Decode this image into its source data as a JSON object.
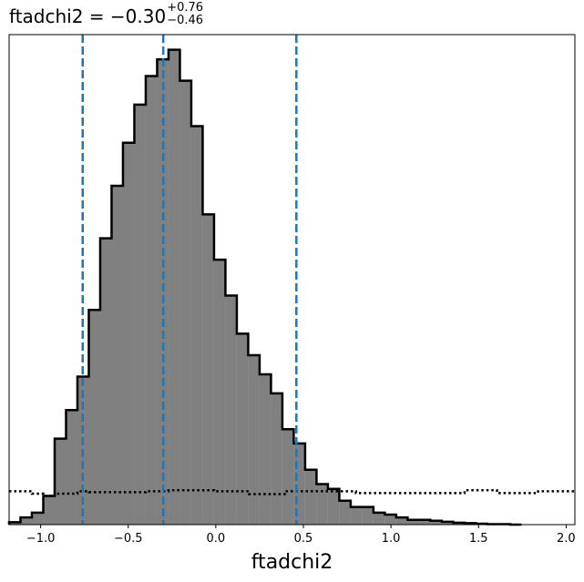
{
  "title": {
    "param": "ftadchi2",
    "equals": " = ",
    "value": "−0.30",
    "plus": "+0.76",
    "minus": "−0.46"
  },
  "chart_data": {
    "type": "histogram",
    "xlabel": "ftadchi2",
    "ylabel": "",
    "xlim": [
      -1.18,
      2.05
    ],
    "ylim": [
      0,
      1.0
    ],
    "x_ticks": [
      -1.0,
      -0.5,
      0.0,
      0.5,
      1.0,
      1.5,
      2.0
    ],
    "x_tick_labels": [
      "−1.0",
      "−0.5",
      "0.0",
      "0.5",
      "1.0",
      "1.5",
      "2.0"
    ],
    "bin_edges": [
      -1.18,
      -1.115,
      -1.05,
      -0.985,
      -0.92,
      -0.855,
      -0.79,
      -0.725,
      -0.66,
      -0.595,
      -0.53,
      -0.465,
      -0.4,
      -0.335,
      -0.27,
      -0.205,
      -0.14,
      -0.075,
      -0.01,
      0.055,
      0.12,
      0.185,
      0.25,
      0.315,
      0.38,
      0.445,
      0.51,
      0.575,
      0.64,
      0.705,
      0.77,
      0.835,
      0.9,
      0.965,
      1.03,
      1.095,
      1.16,
      1.225,
      1.29,
      1.355,
      1.42,
      1.485,
      1.55,
      1.615,
      1.68,
      1.745
    ],
    "posterior_density": [
      0.005,
      0.015,
      0.025,
      0.06,
      0.18,
      0.24,
      0.31,
      0.45,
      0.6,
      0.71,
      0.8,
      0.88,
      0.94,
      0.975,
      0.995,
      0.93,
      0.835,
      0.65,
      0.555,
      0.48,
      0.4,
      0.355,
      0.315,
      0.275,
      0.2,
      0.17,
      0.115,
      0.085,
      0.075,
      0.05,
      0.037,
      0.037,
      0.025,
      0.021,
      0.015,
      0.01,
      0.01,
      0.008,
      0.006,
      0.004,
      0.003,
      0.002,
      0.001,
      0.001,
      0.0
    ],
    "prior_dotted": [
      [
        -1.18,
        0.07
      ],
      [
        -1.05,
        0.07
      ],
      [
        -1.05,
        0.065
      ],
      [
        -0.985,
        0.065
      ],
      [
        -0.985,
        0.06
      ],
      [
        -0.92,
        0.06
      ],
      [
        -0.92,
        0.065
      ],
      [
        -0.79,
        0.065
      ],
      [
        -0.79,
        0.07
      ],
      [
        -0.725,
        0.07
      ],
      [
        -0.725,
        0.068
      ],
      [
        -0.4,
        0.068
      ],
      [
        -0.4,
        0.07
      ],
      [
        -0.27,
        0.07
      ],
      [
        -0.27,
        0.072
      ],
      [
        -0.01,
        0.072
      ],
      [
        -0.01,
        0.07
      ],
      [
        0.19,
        0.07
      ],
      [
        0.19,
        0.064
      ],
      [
        0.405,
        0.064
      ],
      [
        0.405,
        0.07
      ],
      [
        0.8,
        0.07
      ],
      [
        0.8,
        0.066
      ],
      [
        1.42,
        0.066
      ],
      [
        1.42,
        0.072
      ],
      [
        1.605,
        0.072
      ],
      [
        1.605,
        0.066
      ],
      [
        1.84,
        0.066
      ],
      [
        1.84,
        0.07
      ],
      [
        2.05,
        0.07
      ]
    ],
    "quantile_lines": [
      -0.76,
      -0.3,
      0.46
    ],
    "quantile_color": "#1f77b4",
    "fill_color": "#808080",
    "edge_color": "#000000",
    "grid": false
  }
}
